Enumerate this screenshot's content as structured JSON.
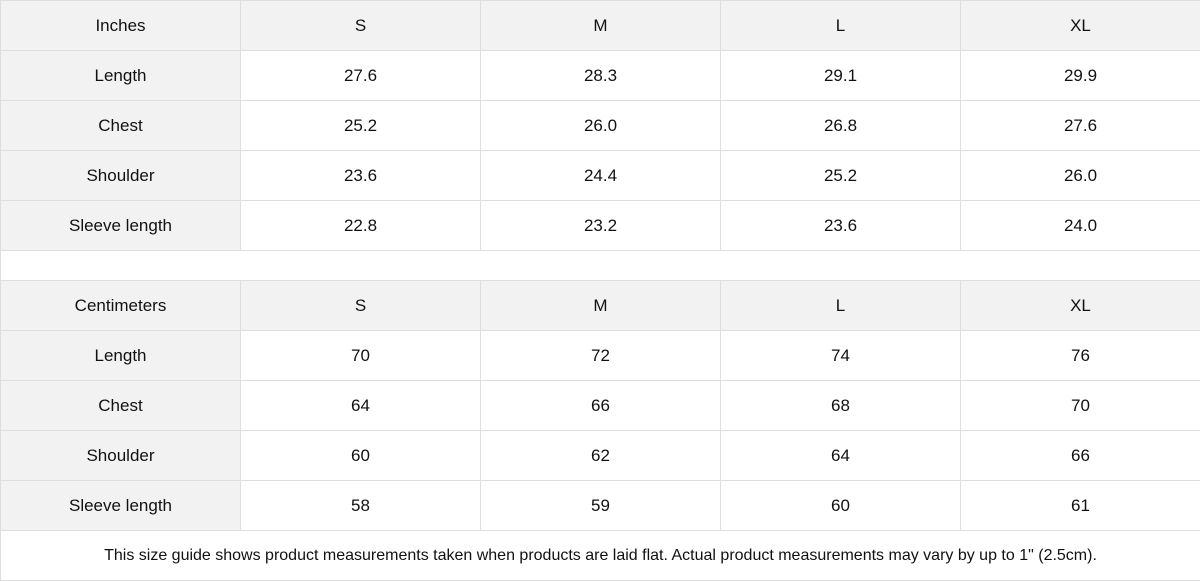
{
  "sizes": [
    "S",
    "M",
    "L",
    "XL"
  ],
  "inches": {
    "header": "Inches",
    "rows": [
      {
        "label": "Length",
        "values": [
          "27.6",
          "28.3",
          "29.1",
          "29.9"
        ]
      },
      {
        "label": "Chest",
        "values": [
          "25.2",
          "26.0",
          "26.8",
          "27.6"
        ]
      },
      {
        "label": "Shoulder",
        "values": [
          "23.6",
          "24.4",
          "25.2",
          "26.0"
        ]
      },
      {
        "label": "Sleeve length",
        "values": [
          "22.8",
          "23.2",
          "23.6",
          "24.0"
        ]
      }
    ]
  },
  "centimeters": {
    "header": "Centimeters",
    "rows": [
      {
        "label": "Length",
        "values": [
          "70",
          "72",
          "74",
          "76"
        ]
      },
      {
        "label": "Chest",
        "values": [
          "64",
          "66",
          "68",
          "70"
        ]
      },
      {
        "label": "Shoulder",
        "values": [
          "60",
          "62",
          "64",
          "66"
        ]
      },
      {
        "label": "Sleeve length",
        "values": [
          "58",
          "59",
          "60",
          "61"
        ]
      }
    ]
  },
  "note": "This size guide shows product measurements taken when products are laid flat.  Actual product measurements may vary by up to 1\" (2.5cm).",
  "colors": {
    "header_bg": "#f2f2f2",
    "border": "#dedede"
  }
}
